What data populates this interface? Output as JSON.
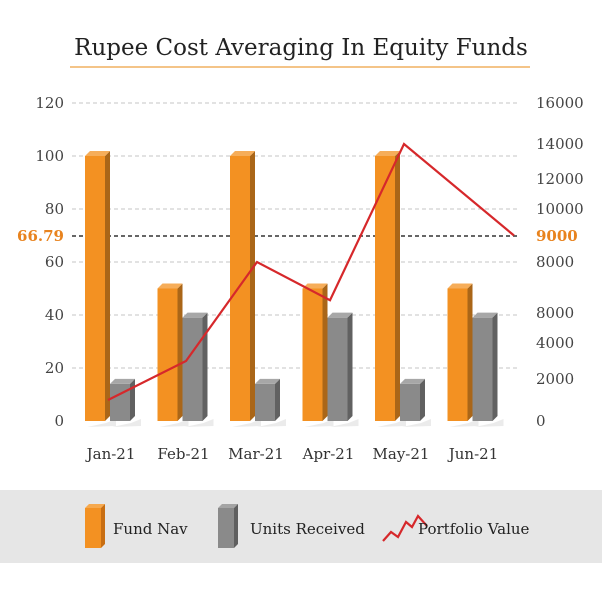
{
  "chart_data": {
    "type": "bar",
    "title": "Rupee Cost Averaging In Equity Funds",
    "categories": [
      "Jan-21",
      "Feb-21",
      "Mar-21",
      "Apr-21",
      "May-21",
      "Jun-21"
    ],
    "series": [
      {
        "name": "Fund Nav",
        "type": "bar",
        "axis": "left",
        "values": [
          100,
          50,
          100,
          50,
          100,
          50
        ]
      },
      {
        "name": "Units Received",
        "type": "bar",
        "axis": "left",
        "values": [
          14,
          39,
          14,
          39,
          14,
          39
        ]
      },
      {
        "name": "Portfolio Value",
        "type": "line",
        "axis": "right",
        "values": [
          1000,
          3000,
          8000,
          6500,
          14000,
          9000
        ]
      }
    ],
    "y_left": {
      "ylim": [
        0,
        120
      ],
      "ticks": [
        "0",
        "20",
        "40",
        "60",
        "80",
        "100",
        "120"
      ]
    },
    "y_right": {
      "ticks": [
        "0",
        "2000",
        "4000",
        "8000",
        "8000",
        "10000",
        "12000",
        "14000",
        "16000"
      ]
    },
    "reference_line": {
      "left_label": "66.79",
      "right_label": "9000",
      "left_value": 66.79
    },
    "grid": true,
    "legend_position": "bottom",
    "colors": {
      "fund_nav": "#f39122",
      "units_received": "#8a8a8a",
      "portfolio_value": "#d6282b",
      "reference_label": "#e8831e",
      "legend_band": "#e6e6e6"
    }
  }
}
